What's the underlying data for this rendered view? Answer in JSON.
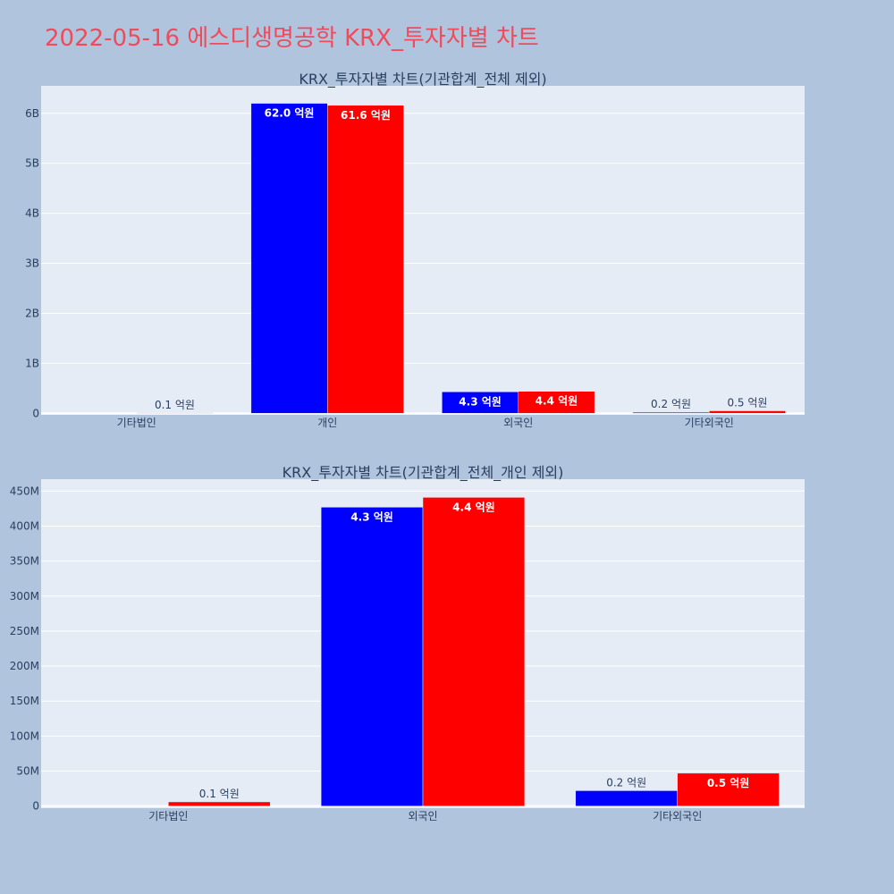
{
  "page": {
    "title": "2022-05-16 에스디생명공학 KRX_투자자별 차트"
  },
  "colors": {
    "background": "#b0c4de",
    "plot_bg": "#e5ecf6",
    "grid": "#ffffff",
    "title": "#ef4b5b",
    "series1": "#0000ff",
    "series2": "#ff0000",
    "text": "#2a3f5f"
  },
  "chart_data": [
    {
      "type": "bar",
      "title": "KRX_투자자별 차트(기관합계_전체 제외)",
      "categories": [
        "기타법인",
        "개인",
        "외국인",
        "기타외국인"
      ],
      "series": [
        {
          "values": [
            0,
            6200000000,
            430000000,
            20000000
          ],
          "labels": [
            "",
            "62.0 억원",
            "4.3 억원",
            "0.2 억원"
          ]
        },
        {
          "values": [
            10000000,
            6160000000,
            440000000,
            50000000
          ],
          "labels": [
            "0.1 억원",
            "61.6 억원",
            "4.4 억원",
            "0.5 억원"
          ]
        }
      ],
      "yticks": [
        0,
        1000000000,
        2000000000,
        3000000000,
        4000000000,
        5000000000,
        6000000000
      ],
      "ytick_labels": [
        "0",
        "1B",
        "2B",
        "3B",
        "4B",
        "5B",
        "6B"
      ],
      "ylim": [
        -30000000,
        6550000000
      ],
      "grid": true,
      "legend": false
    },
    {
      "type": "bar",
      "title": "KRX_투자자별 차트(기관합계_전체_개인 제외)",
      "categories": [
        "기타법인",
        "외국인",
        "기타외국인"
      ],
      "series": [
        {
          "values": [
            0,
            427000000,
            22000000
          ],
          "labels": [
            "",
            "4.3 억원",
            "0.2 억원"
          ]
        },
        {
          "values": [
            6000000,
            441000000,
            47000000
          ],
          "labels": [
            "0.1 억원",
            "4.4 억원",
            "0.5 억원"
          ]
        }
      ],
      "yticks": [
        0,
        50000000,
        100000000,
        150000000,
        200000000,
        250000000,
        300000000,
        350000000,
        400000000,
        450000000
      ],
      "ytick_labels": [
        "0",
        "50M",
        "100M",
        "150M",
        "200M",
        "250M",
        "300M",
        "350M",
        "400M",
        "450M"
      ],
      "ylim": [
        -3000000,
        467000000
      ],
      "grid": true,
      "legend": false
    }
  ]
}
